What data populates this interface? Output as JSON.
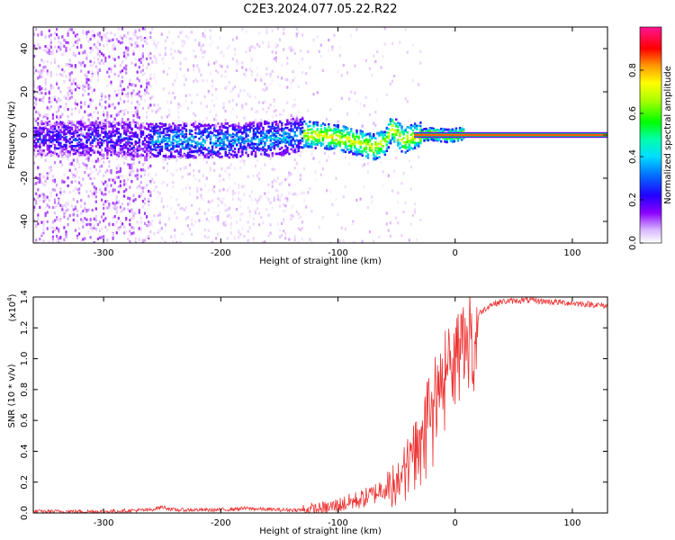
{
  "figure_title": "C2E3.2024.077.05.22.R22",
  "chart_data": [
    {
      "type": "heatmap",
      "xlabel": "Height of straight line (km)",
      "ylabel": "Frequency (Hz)",
      "xlim": [
        -360,
        130
      ],
      "ylim": [
        -50,
        50
      ],
      "xticks": [
        -300,
        -200,
        -100,
        0,
        100
      ],
      "yticks": [
        -40,
        -20,
        0,
        20,
        40
      ],
      "xtick_labels": [
        "-300",
        "-200",
        "-100",
        "0",
        "100"
      ],
      "ytick_labels": [
        "-40",
        "-20",
        "0",
        "20",
        "40"
      ],
      "colorbar": {
        "label": "Normalized spectral amplitude",
        "range": [
          0,
          1
        ],
        "ticks": [
          0.0,
          0.2,
          0.4,
          0.6,
          0.8
        ],
        "tick_labels": [
          "0.0",
          "0.2",
          "0.4",
          "0.6",
          "0.8"
        ],
        "colormap": [
          "#ffffff",
          "#e6c8ff",
          "#8a00ff",
          "#2200ff",
          "#00aaff",
          "#00ffcc",
          "#00ff00",
          "#aaff00",
          "#ffff00",
          "#ff8800",
          "#ff0000",
          "#ff1493"
        ]
      },
      "carrier_line": {
        "frequency": 0,
        "x_start": -35,
        "x_end": 130,
        "amplitude": 1.0
      },
      "signal_band_center": [
        {
          "x": -360,
          "f": -1
        },
        {
          "x": -300,
          "f": -1
        },
        {
          "x": -250,
          "f": -2
        },
        {
          "x": -200,
          "f": -2
        },
        {
          "x": -150,
          "f": -1
        },
        {
          "x": -130,
          "f": 1
        },
        {
          "x": -110,
          "f": 0
        },
        {
          "x": -90,
          "f": -2
        },
        {
          "x": -70,
          "f": -5
        },
        {
          "x": -60,
          "f": -3
        },
        {
          "x": -55,
          "f": 4
        },
        {
          "x": -45,
          "f": -2
        },
        {
          "x": -35,
          "f": 0
        },
        {
          "x": -20,
          "f": 1
        },
        {
          "x": -5,
          "f": 0
        },
        {
          "x": 5,
          "f": 1
        }
      ],
      "noise_regions": [
        {
          "x_start": -360,
          "x_end": -260,
          "level": "high"
        },
        {
          "x_start": -260,
          "x_end": -130,
          "level": "medium"
        },
        {
          "x_start": -130,
          "x_end": -30,
          "level": "low"
        }
      ]
    },
    {
      "type": "line",
      "xlabel": "Height of straight line (km)",
      "ylabel": "SNR (10 * v/v)",
      "scale_label": "(x10",
      "scale_exponent": "4",
      "scale_close": ")",
      "xlim": [
        -360,
        130
      ],
      "ylim": [
        0,
        1.4
      ],
      "xticks": [
        -300,
        -200,
        -100,
        0,
        100
      ],
      "yticks": [
        0.0,
        0.2,
        0.4,
        0.6,
        0.8,
        1.0,
        1.2,
        1.4
      ],
      "xtick_labels": [
        "-300",
        "-200",
        "-100",
        "0",
        "100"
      ],
      "ytick_labels": [
        "0.0",
        "0.2",
        "0.4",
        "0.6",
        "0.8",
        "1.0",
        "1.2",
        "1.4"
      ],
      "color": "#ee3333",
      "series": [
        {
          "x": [
            -360,
            -300,
            -260,
            -250,
            -240,
            -200,
            -180,
            -150,
            -120,
            -110,
            -100,
            -90,
            -80,
            -70,
            -60,
            -50,
            -40,
            -30,
            -20,
            -10,
            0,
            10,
            20,
            30,
            40,
            60,
            80,
            100,
            120,
            130
          ],
          "values": [
            0.01,
            0.01,
            0.02,
            0.04,
            0.02,
            0.02,
            0.03,
            0.02,
            0.02,
            0.03,
            0.05,
            0.07,
            0.09,
            0.12,
            0.17,
            0.25,
            0.37,
            0.55,
            0.75,
            0.97,
            1.1,
            1.2,
            1.29,
            1.35,
            1.37,
            1.38,
            1.37,
            1.36,
            1.35,
            1.34
          ]
        }
      ]
    }
  ]
}
